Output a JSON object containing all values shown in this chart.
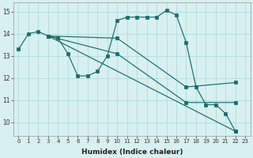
{
  "xlabel": "Humidex (Indice chaleur)",
  "xlim": [
    -0.5,
    23.5
  ],
  "ylim": [
    9.4,
    15.4
  ],
  "xticks": [
    0,
    1,
    2,
    3,
    4,
    5,
    6,
    7,
    8,
    9,
    10,
    11,
    12,
    13,
    14,
    15,
    16,
    17,
    18,
    19,
    20,
    21,
    22,
    23
  ],
  "yticks": [
    10,
    11,
    12,
    13,
    14,
    15
  ],
  "background_color": "#d8f0f0",
  "grid_color": "#a8d8d8",
  "line_color": "#1a6b6b",
  "series": [
    {
      "x": [
        0,
        1,
        2,
        3,
        4,
        5,
        6,
        7,
        8,
        9,
        10,
        11,
        12,
        13,
        14,
        15,
        16,
        17,
        18,
        19,
        20,
        21,
        22
      ],
      "y": [
        13.3,
        14.0,
        14.1,
        13.9,
        13.8,
        13.1,
        12.1,
        12.1,
        12.3,
        13.0,
        14.6,
        14.75,
        14.75,
        14.75,
        14.75,
        15.05,
        14.85,
        13.6,
        11.6,
        10.8,
        10.8,
        10.4,
        9.6
      ]
    },
    {
      "x": [
        3,
        10,
        17,
        22
      ],
      "y": [
        13.9,
        13.8,
        11.6,
        11.8
      ]
    },
    {
      "x": [
        3,
        10,
        17,
        22
      ],
      "y": [
        13.9,
        13.1,
        10.9,
        10.9
      ]
    },
    {
      "x": [
        3,
        22
      ],
      "y": [
        13.9,
        9.6
      ]
    }
  ]
}
